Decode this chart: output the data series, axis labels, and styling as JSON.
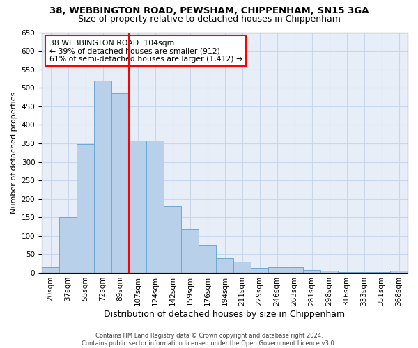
{
  "title1": "38, WEBBINGTON ROAD, PEWSHAM, CHIPPENHAM, SN15 3GA",
  "title2": "Size of property relative to detached houses in Chippenham",
  "xlabel": "Distribution of detached houses by size in Chippenham",
  "ylabel": "Number of detached properties",
  "categories": [
    "20sqm",
    "37sqm",
    "55sqm",
    "72sqm",
    "89sqm",
    "107sqm",
    "124sqm",
    "142sqm",
    "159sqm",
    "176sqm",
    "194sqm",
    "211sqm",
    "229sqm",
    "246sqm",
    "263sqm",
    "281sqm",
    "298sqm",
    "316sqm",
    "333sqm",
    "351sqm",
    "368sqm"
  ],
  "values": [
    15,
    150,
    348,
    520,
    485,
    358,
    358,
    180,
    118,
    75,
    40,
    30,
    13,
    15,
    15,
    8,
    5,
    2,
    2,
    2,
    5
  ],
  "bar_color": "#b8d0ea",
  "bar_edge_color": "#6aaad4",
  "grid_color": "#c8d8ec",
  "background_color": "#e8eef8",
  "vline_x": 4.5,
  "vline_color": "red",
  "annotation_text": "38 WEBBINGTON ROAD: 104sqm\n← 39% of detached houses are smaller (912)\n61% of semi-detached houses are larger (1,412) →",
  "annotation_box_color": "white",
  "annotation_box_edge": "red",
  "footer1": "Contains HM Land Registry data © Crown copyright and database right 2024.",
  "footer2": "Contains public sector information licensed under the Open Government Licence v3.0.",
  "ylim": [
    0,
    650
  ],
  "yticks": [
    0,
    50,
    100,
    150,
    200,
    250,
    300,
    350,
    400,
    450,
    500,
    550,
    600,
    650
  ],
  "title1_fontsize": 9.5,
  "title2_fontsize": 9,
  "ylabel_fontsize": 8,
  "xlabel_fontsize": 9,
  "tick_fontsize": 7.5,
  "annot_fontsize": 7.8
}
